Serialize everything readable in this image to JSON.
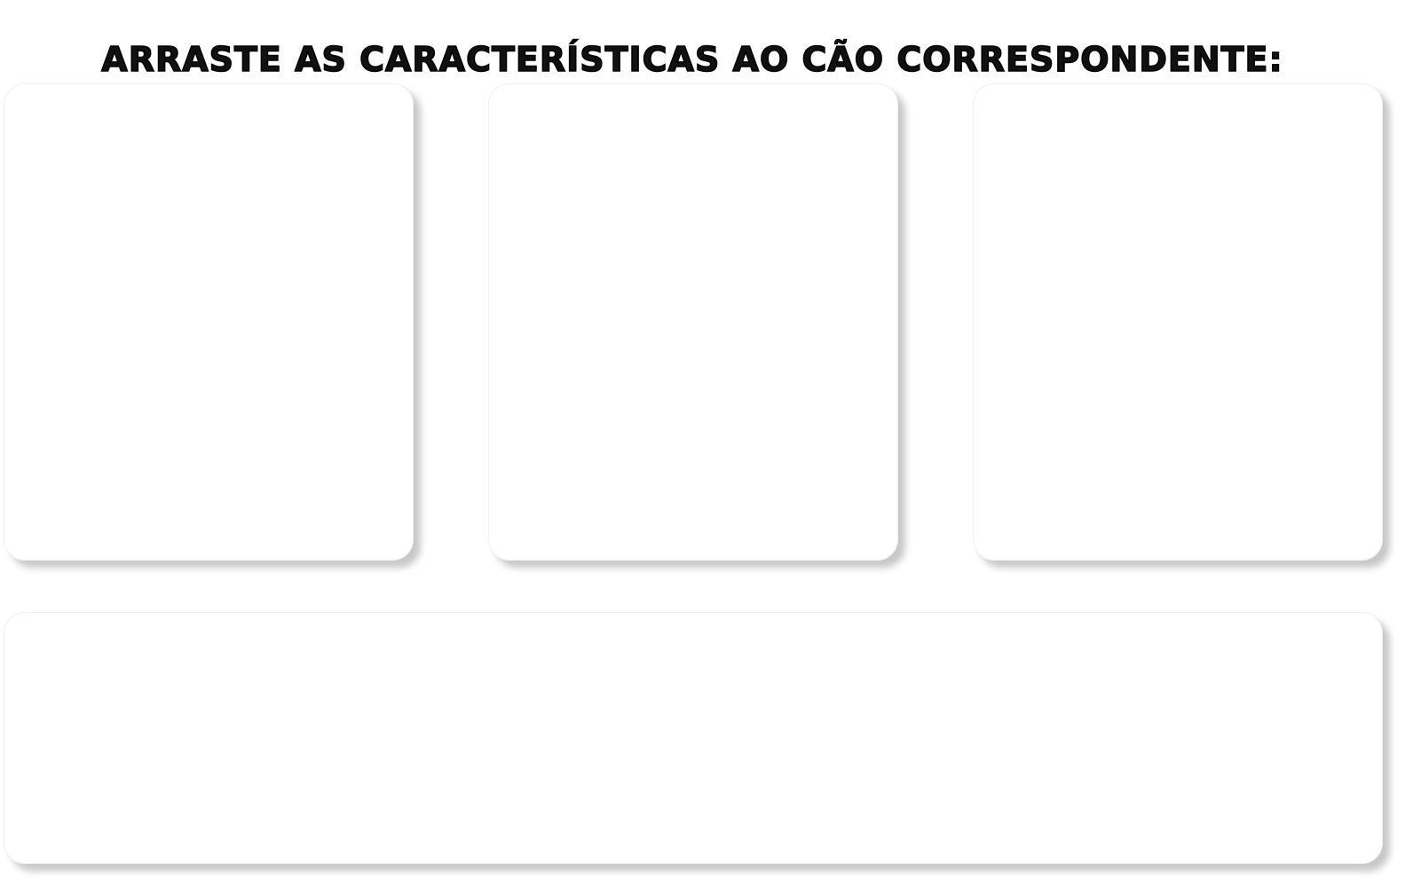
{
  "activity": {
    "instruction": "ARRASTE AS CARACTERÍSTICAS AO CÃO CORRESPONDENTE:"
  }
}
